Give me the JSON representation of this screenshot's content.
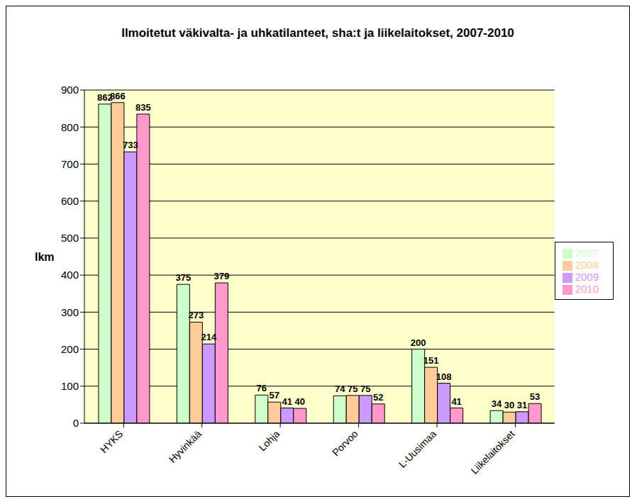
{
  "chart_data": {
    "type": "bar",
    "title": "Ilmoitetut väkivalta- ja uhkatilanteet, sha:t ja liikelaitokset, 2007-2010",
    "y_label": "lkm",
    "categories": [
      "HYKS",
      "Hyvinkää",
      "Lohja",
      "Porvoo",
      "L-Uusimaa",
      "Liikelaitokset"
    ],
    "series": [
      {
        "name": "2007",
        "color": "#ccffcc",
        "values": [
          862,
          375,
          76,
          74,
          200,
          34
        ]
      },
      {
        "name": "2008",
        "color": "#ffcc99",
        "values": [
          866,
          273,
          57,
          75,
          151,
          30
        ]
      },
      {
        "name": "2009",
        "color": "#cc99ff",
        "values": [
          733,
          214,
          41,
          75,
          108,
          31
        ]
      },
      {
        "name": "2010",
        "color": "#ff99cc",
        "values": [
          835,
          379,
          40,
          52,
          41,
          53
        ]
      }
    ],
    "ylim": [
      0,
      900
    ],
    "yticks": [
      0,
      100,
      200,
      300,
      400,
      500,
      600,
      700,
      800,
      900
    ],
    "grid": true,
    "legend": "right",
    "data_labels": true
  }
}
